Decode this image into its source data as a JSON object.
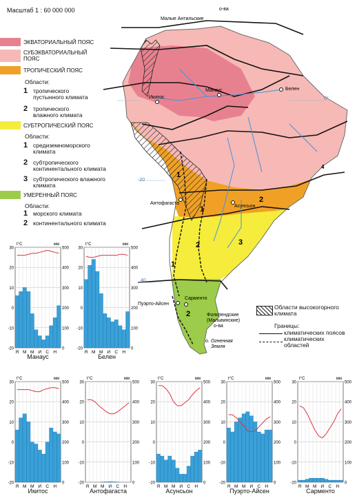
{
  "scale": "Масштаб 1 : 60 000 000",
  "colors": {
    "equatorial": "#e8818f",
    "subequatorial": "#f6b9b6",
    "tropical": "#f0a125",
    "subtropical": "#f5ec3c",
    "temperate": "#9ccc4a",
    "ocean": "#ffffff",
    "river": "#4a90d9",
    "bar": "#3aa0d8",
    "line": "#d9363e"
  },
  "legend": {
    "equatorial": "ЭКВАТОРИАЛЬНЫЙ ПОЯС",
    "subequatorial_1": "СУБЭКВАТОРИАЛЬНЫЙ",
    "subequatorial_2": "ПОЯС",
    "tropical": "ТРОПИЧЕСКИЙ ПОЯС",
    "tropical_regions_heading": "Области:",
    "tropical_regions": [
      {
        "num": "1",
        "line1": "тропического",
        "line2": "пустынного климата"
      },
      {
        "num": "2",
        "line1": "тропического",
        "line2": "влажного климата"
      }
    ],
    "subtropical": "СУБТРОПИЧЕСКИЙ ПОЯС",
    "subtropical_regions_heading": "Области:",
    "subtropical_regions": [
      {
        "num": "1",
        "line1": "средиземноморского",
        "line2": "климата"
      },
      {
        "num": "2",
        "line1": "субтропического",
        "line2": "континентального климата"
      },
      {
        "num": "3",
        "line1": "субтропического влажного",
        "line2": "климата"
      }
    ],
    "temperate": "УМЕРЕННЫЙ ПОЯС",
    "temperate_regions_heading": "Области:",
    "temperate_regions": [
      {
        "num": "1",
        "line1": "морского климата",
        "line2": ""
      },
      {
        "num": "2",
        "line1": "континентального климата",
        "line2": ""
      }
    ],
    "highland_1": "Области высокогорного",
    "highland_2": "климата",
    "borders_heading": "Границы:",
    "borders_belts": "климатических поясов",
    "borders_areas_1": "климатических",
    "borders_areas_2": "областей"
  },
  "map_labels": {
    "antilles": "Малые Антильские",
    "antilles_2": "о-ва",
    "iquitos": "Икитос",
    "manaus": "Манаус",
    "belen": "Белен",
    "antofagasta": "Антофагаста",
    "asuncion": "Асунсьон",
    "puerto_aisen": "Пуэрто-Айсен",
    "sarmiento": "Сарменто",
    "falkland_1": "Фолклендские",
    "falkland_2": "(Мальвинские)",
    "falkland_3": "о-ва",
    "tierra_1": "о. Огненная",
    "tierra_2": "Земля",
    "lat_0": "0°",
    "lat_20": "-20",
    "lat_40": "40",
    "num_t1": "1",
    "num_t2": "2",
    "num_s1": "1",
    "num_s2": "2",
    "num_s3": "3",
    "num_m1": "1",
    "num_m2": "2",
    "num_tr4": "4"
  },
  "chart_data": [
    {
      "type": "bar",
      "city": "Манаус",
      "xlabels": [
        "Я",
        "М",
        "М",
        "И",
        "С",
        "Н"
      ],
      "temp_axis": "t°C",
      "precip_axis": "мм",
      "temp_ticks": [
        30,
        20,
        10,
        0,
        -10,
        -20
      ],
      "precip_ticks": [
        500,
        400,
        300,
        200,
        100,
        0
      ],
      "precip": [
        260,
        280,
        300,
        280,
        170,
        90,
        60,
        40,
        60,
        110,
        150,
        210
      ],
      "temp": [
        26,
        26,
        26,
        26.5,
        27,
        27,
        27.5,
        28,
        28.5,
        28,
        27.5,
        27
      ]
    },
    {
      "type": "bar",
      "city": "Белен",
      "xlabels": [
        "Я",
        "М",
        "М",
        "И",
        "С",
        "Н"
      ],
      "temp_axis": "t°C",
      "precip_axis": "мм",
      "temp_ticks": [
        30,
        20,
        10,
        0,
        -10,
        -20
      ],
      "precip_ticks": [
        500,
        400,
        300,
        200,
        100,
        0
      ],
      "precip": [
        340,
        410,
        440,
        380,
        270,
        170,
        150,
        130,
        140,
        110,
        90,
        180
      ],
      "temp": [
        25.5,
        25,
        25,
        25.5,
        26,
        26,
        26,
        26,
        26,
        26.5,
        26.5,
        26
      ]
    },
    {
      "type": "bar",
      "city": "Икитос",
      "xlabels": [
        "Я",
        "М",
        "М",
        "И",
        "С",
        "Н"
      ],
      "temp_axis": "t°C",
      "precip_axis": "мм",
      "temp_ticks": [
        30,
        20,
        10,
        0,
        -10,
        -20
      ],
      "precip_ticks": [
        500,
        400,
        300,
        200,
        100,
        0
      ],
      "precip": [
        260,
        320,
        340,
        300,
        200,
        190,
        160,
        140,
        200,
        270,
        250,
        240
      ],
      "temp": [
        26,
        26,
        26,
        26,
        25.5,
        25,
        25,
        26,
        26.5,
        27,
        27,
        26.5
      ]
    },
    {
      "type": "bar",
      "city": "Антофагаста",
      "xlabels": [
        "Я",
        "М",
        "М",
        "И",
        "С",
        "Н"
      ],
      "temp_axis": "t°C",
      "precip_axis": "мм",
      "temp_ticks": [
        30,
        20,
        10,
        0,
        -10,
        -20
      ],
      "precip_ticks": [
        500,
        400,
        300,
        200,
        100,
        0
      ],
      "precip": [
        0,
        0,
        0,
        0,
        1,
        2,
        3,
        2,
        1,
        0,
        0,
        0
      ],
      "temp": [
        21,
        21,
        20,
        18,
        16.5,
        15,
        14,
        14,
        15,
        16.5,
        18,
        19.5
      ]
    },
    {
      "type": "bar",
      "city": "Асунсьон",
      "xlabels": [
        "Я",
        "М",
        "М",
        "И",
        "С",
        "Н"
      ],
      "temp_axis": "t°C",
      "precip_axis": "мм",
      "temp_ticks": [
        30,
        20,
        10,
        0,
        -10,
        -20
      ],
      "precip_ticks": [
        500,
        400,
        300,
        200,
        100,
        0
      ],
      "precip": [
        140,
        130,
        110,
        130,
        110,
        70,
        40,
        40,
        80,
        130,
        150,
        160
      ],
      "temp": [
        28,
        28,
        26.5,
        24,
        20,
        18,
        18,
        19.5,
        21,
        23.5,
        25.5,
        27
      ]
    },
    {
      "type": "bar",
      "city": "Пуэрто-Айсен",
      "xlabels": [
        "Я",
        "М",
        "М",
        "И",
        "С",
        "Н"
      ],
      "temp_axis": "t°C",
      "precip_axis": "мм",
      "temp_ticks": [
        30,
        20,
        10,
        0,
        -10,
        -20
      ],
      "precip_ticks": [
        500,
        400,
        300,
        200,
        100,
        0
      ],
      "precip": [
        270,
        250,
        300,
        320,
        340,
        350,
        330,
        300,
        250,
        240,
        260,
        260
      ],
      "temp": [
        13.5,
        13.5,
        12,
        10,
        8,
        5.5,
        5,
        5.5,
        7.5,
        9.5,
        11.5,
        12.5
      ]
    },
    {
      "type": "bar",
      "city": "Сарменто",
      "xlabels": [
        "Я",
        "М",
        "М",
        "И",
        "С",
        "Н"
      ],
      "temp_axis": "t°C",
      "precip_axis": "мм",
      "temp_ticks": [
        30,
        20,
        10,
        0,
        -10,
        -20
      ],
      "precip_ticks": [
        500,
        400,
        300,
        200,
        100,
        0
      ],
      "precip": [
        10,
        10,
        15,
        20,
        20,
        20,
        20,
        15,
        10,
        10,
        10,
        10
      ],
      "temp": [
        18,
        17,
        14,
        10,
        6,
        3,
        2,
        4,
        7,
        10,
        14,
        16.5
      ]
    }
  ]
}
